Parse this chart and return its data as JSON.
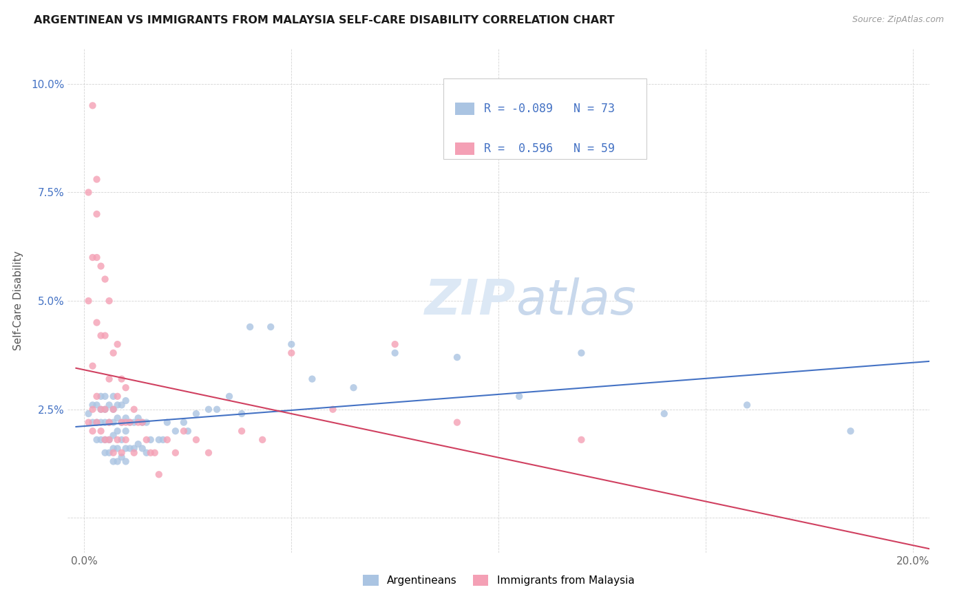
{
  "title": "ARGENTINEAN VS IMMIGRANTS FROM MALAYSIA SELF-CARE DISABILITY CORRELATION CHART",
  "source": "Source: ZipAtlas.com",
  "ylabel": "Self-Care Disability",
  "xlim": [
    0.0,
    0.2
  ],
  "ylim": [
    -0.005,
    0.105
  ],
  "xticks": [
    0.0,
    0.05,
    0.1,
    0.15,
    0.2
  ],
  "xtick_labels": [
    "0.0%",
    "",
    "",
    "",
    "20.0%"
  ],
  "yticks": [
    0.0,
    0.025,
    0.05,
    0.075,
    0.1
  ],
  "ytick_labels": [
    "",
    "2.5%",
    "5.0%",
    "7.5%",
    "10.0%"
  ],
  "argentinean_R": -0.089,
  "argentinean_N": 73,
  "malaysia_R": 0.596,
  "malaysia_N": 59,
  "argentinean_color": "#aac4e2",
  "malaysia_color": "#f4a0b5",
  "trendline_argentinean_color": "#4472c4",
  "trendline_malaysia_color": "#d04060",
  "legend_label_1": "Argentineans",
  "legend_label_2": "Immigrants from Malaysia",
  "argentinean_x": [
    0.001,
    0.002,
    0.002,
    0.003,
    0.003,
    0.003,
    0.004,
    0.004,
    0.004,
    0.004,
    0.005,
    0.005,
    0.005,
    0.005,
    0.005,
    0.006,
    0.006,
    0.006,
    0.006,
    0.007,
    0.007,
    0.007,
    0.007,
    0.007,
    0.007,
    0.008,
    0.008,
    0.008,
    0.008,
    0.008,
    0.009,
    0.009,
    0.009,
    0.009,
    0.01,
    0.01,
    0.01,
    0.01,
    0.01,
    0.011,
    0.011,
    0.012,
    0.012,
    0.013,
    0.013,
    0.014,
    0.014,
    0.015,
    0.015,
    0.016,
    0.018,
    0.019,
    0.02,
    0.022,
    0.024,
    0.025,
    0.027,
    0.03,
    0.032,
    0.035,
    0.038,
    0.04,
    0.045,
    0.05,
    0.055,
    0.065,
    0.075,
    0.09,
    0.105,
    0.12,
    0.14,
    0.16,
    0.185
  ],
  "argentinean_y": [
    0.024,
    0.022,
    0.026,
    0.018,
    0.022,
    0.026,
    0.018,
    0.022,
    0.025,
    0.028,
    0.015,
    0.018,
    0.022,
    0.025,
    0.028,
    0.015,
    0.018,
    0.022,
    0.026,
    0.013,
    0.016,
    0.019,
    0.022,
    0.025,
    0.028,
    0.013,
    0.016,
    0.02,
    0.023,
    0.026,
    0.014,
    0.018,
    0.022,
    0.026,
    0.013,
    0.016,
    0.02,
    0.023,
    0.027,
    0.016,
    0.022,
    0.016,
    0.022,
    0.017,
    0.023,
    0.016,
    0.022,
    0.015,
    0.022,
    0.018,
    0.018,
    0.018,
    0.022,
    0.02,
    0.022,
    0.02,
    0.024,
    0.025,
    0.025,
    0.028,
    0.024,
    0.044,
    0.044,
    0.04,
    0.032,
    0.03,
    0.038,
    0.037,
    0.028,
    0.038,
    0.024,
    0.026,
    0.02
  ],
  "malaysia_x": [
    0.001,
    0.001,
    0.001,
    0.002,
    0.002,
    0.002,
    0.002,
    0.002,
    0.003,
    0.003,
    0.003,
    0.003,
    0.003,
    0.003,
    0.004,
    0.004,
    0.004,
    0.004,
    0.005,
    0.005,
    0.005,
    0.005,
    0.006,
    0.006,
    0.006,
    0.006,
    0.007,
    0.007,
    0.007,
    0.008,
    0.008,
    0.008,
    0.009,
    0.009,
    0.009,
    0.01,
    0.01,
    0.01,
    0.011,
    0.012,
    0.012,
    0.013,
    0.014,
    0.015,
    0.016,
    0.017,
    0.018,
    0.02,
    0.022,
    0.024,
    0.027,
    0.03,
    0.038,
    0.043,
    0.05,
    0.06,
    0.075,
    0.09,
    0.12
  ],
  "malaysia_y": [
    0.022,
    0.05,
    0.075,
    0.02,
    0.025,
    0.035,
    0.06,
    0.095,
    0.022,
    0.028,
    0.045,
    0.06,
    0.07,
    0.078,
    0.02,
    0.025,
    0.042,
    0.058,
    0.018,
    0.025,
    0.042,
    0.055,
    0.018,
    0.022,
    0.032,
    0.05,
    0.015,
    0.025,
    0.038,
    0.018,
    0.028,
    0.04,
    0.015,
    0.022,
    0.032,
    0.018,
    0.022,
    0.03,
    0.022,
    0.015,
    0.025,
    0.022,
    0.022,
    0.018,
    0.015,
    0.015,
    0.01,
    0.018,
    0.015,
    0.02,
    0.018,
    0.015,
    0.02,
    0.018,
    0.038,
    0.025,
    0.04,
    0.022,
    0.018
  ]
}
